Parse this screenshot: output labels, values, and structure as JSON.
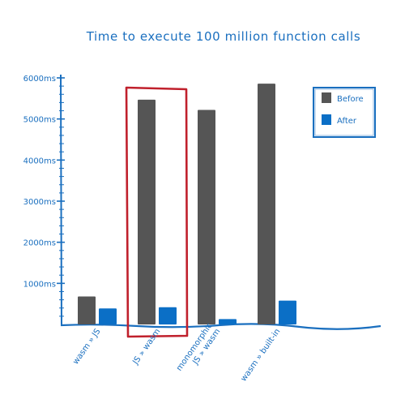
{
  "chart_data": {
    "type": "bar",
    "title": "Time to execute 100 million function calls",
    "categories": [
      [
        "wasm » JS"
      ],
      [
        "JS » wasm"
      ],
      [
        "monomorphic",
        "JS » wasm"
      ],
      [
        "wasm » built-in"
      ]
    ],
    "series": [
      {
        "name": "Before",
        "color": "#555555",
        "values": [
          680,
          5470,
          5220,
          5860
        ]
      },
      {
        "name": "After",
        "color": "#0b6fc6",
        "values": [
          390,
          420,
          130,
          580
        ]
      }
    ],
    "y_ticks": [
      {
        "value": 1000,
        "label": "1000ms"
      },
      {
        "value": 2000,
        "label": "2000ms"
      },
      {
        "value": 3000,
        "label": "3000ms"
      },
      {
        "value": 4000,
        "label": "4000ms"
      },
      {
        "value": 5000,
        "label": "5000ms"
      },
      {
        "value": 6000,
        "label": "6000ms"
      }
    ],
    "ylim": [
      0,
      6000
    ],
    "legend_position": "top-right",
    "highlight_category": 1,
    "highlight_color": "#c0202c",
    "axis_color": "#1a6fbf"
  }
}
